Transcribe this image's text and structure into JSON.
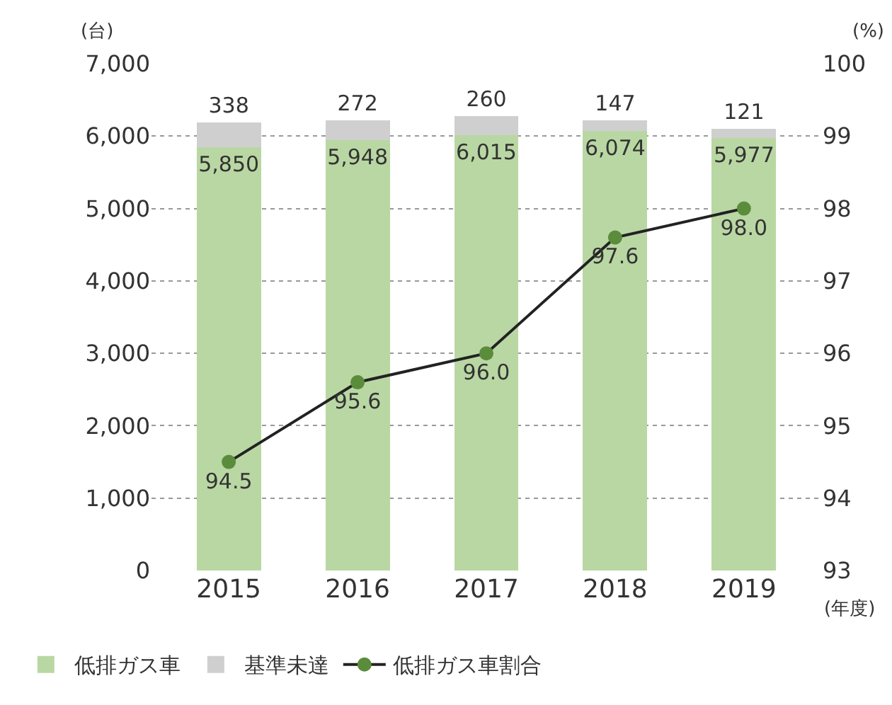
{
  "chart_data": {
    "type": "bar",
    "stacked": true,
    "categories": [
      "2015",
      "2016",
      "2017",
      "2018",
      "2019"
    ],
    "series": [
      {
        "name": "低排ガス車",
        "color": "#b9d7a3",
        "values": [
          5850,
          5948,
          6015,
          6074,
          5977
        ],
        "value_labels": [
          "5,850",
          "5,948",
          "6,015",
          "6,074",
          "5,977"
        ]
      },
      {
        "name": "基準未達",
        "color": "#cfcfcf",
        "values": [
          338,
          272,
          260,
          147,
          121
        ],
        "value_labels": [
          "338",
          "272",
          "260",
          "147",
          "121"
        ]
      },
      {
        "name": "低排ガス車割合",
        "type": "line",
        "axis": "y2",
        "color": "#5a8c3c",
        "marker": "circle",
        "values": [
          94.5,
          95.6,
          96.0,
          97.6,
          98.0
        ],
        "value_labels": [
          "94.5",
          "95.6",
          "96.0",
          "97.6",
          "98.0"
        ]
      }
    ],
    "ylim": [
      0,
      7000
    ],
    "yticks": [
      {
        "value": 0,
        "label": "0"
      },
      {
        "value": 1000,
        "label": "1,000"
      },
      {
        "value": 2000,
        "label": "2,000"
      },
      {
        "value": 3000,
        "label": "3,000"
      },
      {
        "value": 4000,
        "label": "4,000"
      },
      {
        "value": 5000,
        "label": "5,000"
      },
      {
        "value": 6000,
        "label": "6,000"
      },
      {
        "value": 7000,
        "label": "7,000"
      }
    ],
    "y2lim": [
      93,
      100
    ],
    "y2ticks": [
      93,
      94,
      95,
      96,
      97,
      98,
      99,
      100
    ],
    "ylabel": "(台)",
    "y2label": "(%)",
    "xlabel": "(年度)",
    "grid": "y",
    "legend": "bottom left"
  }
}
